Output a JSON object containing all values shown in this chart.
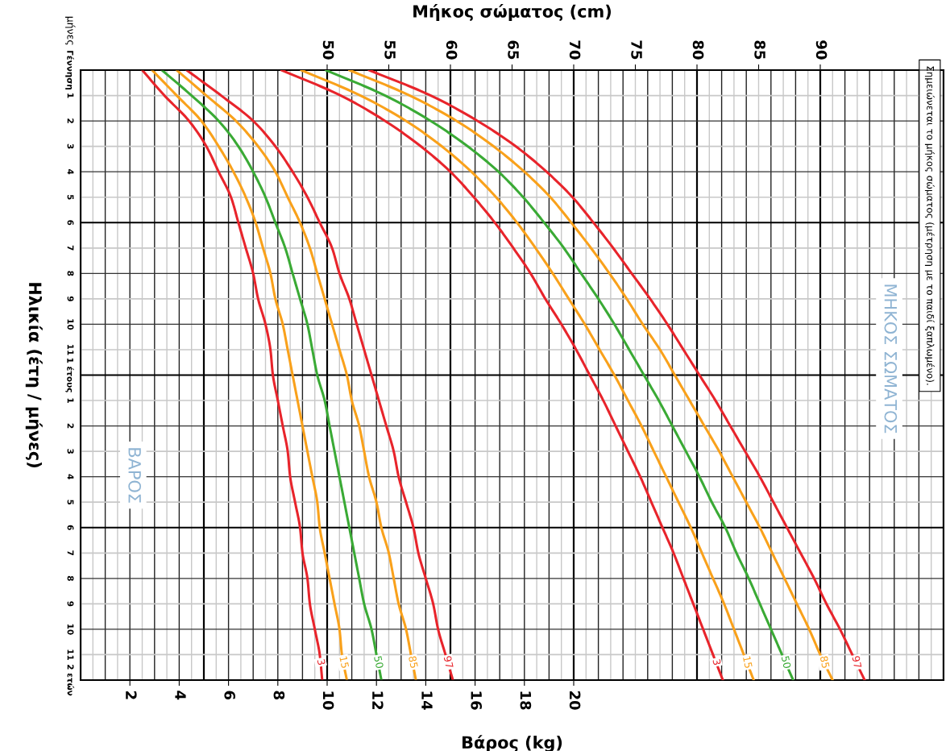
{
  "chart_data": {
    "type": "line",
    "orientation": "horizontal",
    "xlabel": "Βάρος (kg)",
    "x2label": "Μήκος σώματος (cm)",
    "ylabel": "Ηλικία (έτη / μήνες)",
    "categories": [
      "Γέννηση",
      "1",
      "2",
      "3",
      "4",
      "5",
      "6",
      "7",
      "8",
      "9",
      "10",
      "11",
      "1 έτους",
      "1",
      "2",
      "3",
      "4",
      "5",
      "6",
      "7",
      "8",
      "9",
      "10",
      "11",
      "2 ετών"
    ],
    "xlim": [
      0,
      35
    ],
    "xticks": [
      2,
      4,
      6,
      8,
      10,
      12,
      14,
      16,
      18,
      20
    ],
    "x2lim": [
      30,
      100
    ],
    "x2ticks": [
      50,
      55,
      60,
      65,
      70,
      75,
      80,
      85,
      90
    ],
    "grid": true,
    "annotations": [
      "μήνες",
      "ΒΑΡΟΣ",
      "ΜΗΚΟΣ ΣΩΜΑΤΟΣ",
      "Σημειώνεται το μήκος σώματος (μέτρηση με το παιδί ξαπλωμένο)."
    ],
    "series": [
      {
        "name": "3",
        "color": "#e8242b",
        "values": [
          2.5,
          3.4,
          4.4,
          5.1,
          5.6,
          6.1,
          6.4,
          6.7,
          7.0,
          7.2,
          7.5,
          7.7,
          7.8,
          8.0,
          8.2,
          8.4,
          8.5,
          8.7,
          8.9,
          9.0,
          9.2,
          9.3,
          9.5,
          9.7,
          9.8
        ]
      },
      {
        "name": "15",
        "color": "#f9a11b",
        "values": [
          2.9,
          3.9,
          4.9,
          5.6,
          6.2,
          6.7,
          7.1,
          7.4,
          7.7,
          7.9,
          8.2,
          8.4,
          8.6,
          8.8,
          9.0,
          9.2,
          9.4,
          9.6,
          9.7,
          9.9,
          10.1,
          10.3,
          10.5,
          10.6,
          10.8
        ]
      },
      {
        "name": "50",
        "color": "#3aaa35",
        "values": [
          3.3,
          4.5,
          5.6,
          6.4,
          7.0,
          7.5,
          7.9,
          8.3,
          8.6,
          8.9,
          9.2,
          9.4,
          9.6,
          9.9,
          10.1,
          10.3,
          10.5,
          10.7,
          10.9,
          11.1,
          11.3,
          11.5,
          11.8,
          12.0,
          12.2
        ]
      },
      {
        "name": "85",
        "color": "#f9a11b",
        "values": [
          3.9,
          5.1,
          6.3,
          7.2,
          7.9,
          8.4,
          8.9,
          9.3,
          9.6,
          9.9,
          10.2,
          10.5,
          10.8,
          11.0,
          11.3,
          11.5,
          11.7,
          12.0,
          12.2,
          12.5,
          12.7,
          12.9,
          13.2,
          13.4,
          13.6
        ]
      },
      {
        "name": "97",
        "color": "#e8242b",
        "values": [
          4.3,
          5.7,
          7.0,
          7.9,
          8.6,
          9.2,
          9.7,
          10.2,
          10.5,
          10.9,
          11.2,
          11.5,
          11.8,
          12.1,
          12.4,
          12.7,
          12.9,
          13.2,
          13.5,
          13.7,
          14.0,
          14.3,
          14.5,
          14.8,
          15.1
        ]
      },
      {
        "name": "3",
        "axis": "x2",
        "color": "#e8242b",
        "values": [
          46.3,
          51.1,
          54.7,
          57.6,
          60.0,
          61.9,
          63.6,
          65.1,
          66.5,
          67.7,
          69.0,
          70.2,
          71.3,
          72.4,
          73.4,
          74.4,
          75.4,
          76.3,
          77.2,
          78.1,
          78.9,
          79.7,
          80.5,
          81.3,
          82.1
        ]
      },
      {
        "name": "15",
        "axis": "x2",
        "color": "#f9a11b",
        "values": [
          47.9,
          52.7,
          56.4,
          59.3,
          61.7,
          63.7,
          65.4,
          66.9,
          68.3,
          69.6,
          70.9,
          72.1,
          73.3,
          74.4,
          75.5,
          76.5,
          77.5,
          78.5,
          79.5,
          80.4,
          81.3,
          82.2,
          83.0,
          83.8,
          84.6
        ]
      },
      {
        "name": "50",
        "axis": "x2",
        "color": "#3aaa35",
        "values": [
          49.9,
          54.7,
          58.4,
          61.4,
          63.9,
          65.9,
          67.6,
          69.2,
          70.6,
          72.0,
          73.3,
          74.5,
          75.7,
          76.9,
          78.0,
          79.1,
          80.2,
          81.2,
          82.3,
          83.2,
          84.2,
          85.1,
          86.0,
          86.9,
          87.8
        ]
      },
      {
        "name": "85",
        "axis": "x2",
        "color": "#f9a11b",
        "values": [
          51.8,
          56.7,
          60.5,
          63.5,
          66.0,
          68.1,
          69.8,
          71.4,
          72.9,
          74.3,
          75.6,
          77.0,
          78.2,
          79.4,
          80.6,
          81.8,
          82.9,
          84.0,
          85.1,
          86.1,
          87.1,
          88.1,
          89.1,
          90.0,
          91.0
        ]
      },
      {
        "name": "97",
        "axis": "x2",
        "color": "#e8242b",
        "values": [
          53.4,
          58.4,
          62.2,
          65.3,
          67.8,
          69.9,
          71.6,
          73.2,
          74.7,
          76.2,
          77.6,
          78.9,
          80.2,
          81.5,
          82.7,
          83.9,
          85.1,
          86.2,
          87.3,
          88.4,
          89.5,
          90.5,
          91.6,
          92.6,
          93.6
        ]
      }
    ]
  }
}
